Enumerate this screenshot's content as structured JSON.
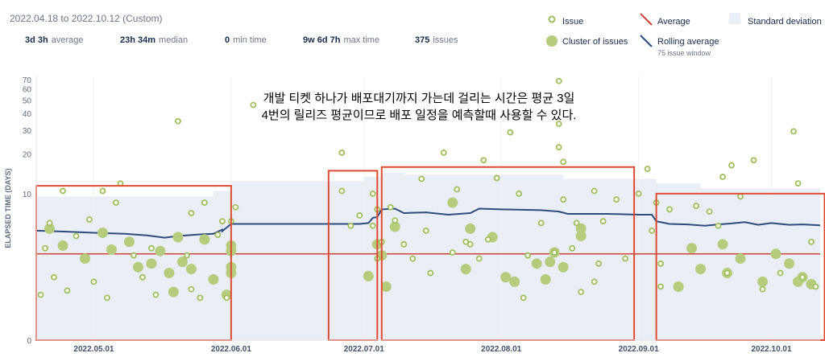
{
  "date_range": "2022.04.18 to 2022.10.12 (Custom)",
  "stats": [
    {
      "value": "3d 3h",
      "label": "average"
    },
    {
      "value": "23h 34m",
      "label": "median"
    },
    {
      "value": "0",
      "label": "min time"
    },
    {
      "value": "9w 6d 7h",
      "label": "max time"
    },
    {
      "value": "375",
      "label": "issues"
    }
  ],
  "legend": {
    "issue": "Issue",
    "cluster": "Cluster of issues",
    "average": "Average",
    "rolling": "Rolling average",
    "rolling_window": "75 issue window",
    "stddev": "Standard deviation"
  },
  "annotation": {
    "line1": "개발 티켓 하나가 배포대기까지 가는데 걸리는 시간은 평균 3일",
    "line2": "4번의 릴리즈 평균이므로 배포 일정을 예측할때 사용할 수 있다."
  },
  "colors": {
    "issue": "#9fbf5a",
    "cluster": "#b5cc7d",
    "average": "#d04437",
    "rolling": "#2e4c7f",
    "stddev": "#e9eef7",
    "highlight": "#e04a32"
  },
  "chart_data": {
    "type": "scatter",
    "scale": "log",
    "ylabel": "ELAPSED TIME (DAYS)",
    "yticks": [
      0,
      10,
      20,
      30,
      40,
      50,
      60,
      70
    ],
    "xticks": [
      "2022.05.01",
      "2022.06.01",
      "2022.07.01",
      "2022.08.01",
      "2022.09.01",
      "2022.10.01"
    ],
    "x_start": "2022-04-18",
    "x_end": "2022-10-12",
    "average_days": 3.1,
    "issues": [
      {
        "x": "2022-04-19",
        "y": 1.1
      },
      {
        "x": "2022-04-20",
        "y": 3.5
      },
      {
        "x": "2022-04-21",
        "y": 5.8
      },
      {
        "x": "2022-04-22",
        "y": 1.8
      },
      {
        "x": "2022-04-24",
        "y": 10.5
      },
      {
        "x": "2022-04-25",
        "y": 1.25
      },
      {
        "x": "2022-04-27",
        "y": 4.5
      },
      {
        "x": "2022-04-30",
        "y": 6.2
      },
      {
        "x": "2022-05-01",
        "y": 1.6
      },
      {
        "x": "2022-05-03",
        "y": 10.5
      },
      {
        "x": "2022-05-04",
        "y": 1.0
      },
      {
        "x": "2022-05-06",
        "y": 8.5
      },
      {
        "x": "2022-05-07",
        "y": 12.0
      },
      {
        "x": "2022-05-10",
        "y": 3.0
      },
      {
        "x": "2022-05-12",
        "y": 1.8
      },
      {
        "x": "2022-05-14",
        "y": 3.5
      },
      {
        "x": "2022-05-15",
        "y": 1.1
      },
      {
        "x": "2022-05-20",
        "y": 35
      },
      {
        "x": "2022-05-22",
        "y": 3.0
      },
      {
        "x": "2022-05-23",
        "y": 7.0
      },
      {
        "x": "2022-05-23",
        "y": 1.3
      },
      {
        "x": "2022-05-25",
        "y": 1.0
      },
      {
        "x": "2022-05-26",
        "y": 8.5
      },
      {
        "x": "2022-05-29",
        "y": 4.6
      },
      {
        "x": "2022-05-30",
        "y": 6.0
      },
      {
        "x": "2022-05-31",
        "y": 1.0
      },
      {
        "x": "2022-06-01",
        "y": 6.0
      },
      {
        "x": "2022-06-02",
        "y": 7.8
      },
      {
        "x": "2022-06-06",
        "y": 46
      },
      {
        "x": "2022-06-26",
        "y": 20.5
      },
      {
        "x": "2022-06-26",
        "y": 10.5
      },
      {
        "x": "2022-06-28",
        "y": 5.5
      },
      {
        "x": "2022-06-30",
        "y": 6.7
      },
      {
        "x": "2022-07-03",
        "y": 10.0
      },
      {
        "x": "2022-07-03",
        "y": 5.5
      },
      {
        "x": "2022-07-04",
        "y": 7.5
      },
      {
        "x": "2022-07-04",
        "y": 2.8
      },
      {
        "x": "2022-07-05",
        "y": 4.0
      },
      {
        "x": "2022-07-07",
        "y": 7.8
      },
      {
        "x": "2022-07-08",
        "y": 6.1
      },
      {
        "x": "2022-07-10",
        "y": 3.8
      },
      {
        "x": "2022-07-12",
        "y": 2.8
      },
      {
        "x": "2022-07-14",
        "y": 13.0
      },
      {
        "x": "2022-07-15",
        "y": 5.0
      },
      {
        "x": "2022-07-16",
        "y": 2.0
      },
      {
        "x": "2022-07-19",
        "y": 20.5
      },
      {
        "x": "2022-07-21",
        "y": 3.2
      },
      {
        "x": "2022-07-22",
        "y": 10.8
      },
      {
        "x": "2022-07-24",
        "y": 4.0
      },
      {
        "x": "2022-07-25",
        "y": 3.8
      },
      {
        "x": "2022-07-27",
        "y": 2.8
      },
      {
        "x": "2022-07-28",
        "y": 18.0
      },
      {
        "x": "2022-07-29",
        "y": 4.2
      },
      {
        "x": "2022-07-31",
        "y": 13.2
      },
      {
        "x": "2022-08-03",
        "y": 29.0
      },
      {
        "x": "2022-08-05",
        "y": 10.0
      },
      {
        "x": "2022-08-06",
        "y": 1.0
      },
      {
        "x": "2022-08-07",
        "y": 3.0
      },
      {
        "x": "2022-08-10",
        "y": 5.8
      },
      {
        "x": "2022-08-13",
        "y": 3.2
      },
      {
        "x": "2022-08-14",
        "y": 68.5
      },
      {
        "x": "2022-08-14",
        "y": 33.5
      },
      {
        "x": "2022-08-14",
        "y": 22.5
      },
      {
        "x": "2022-08-15",
        "y": 17.5
      },
      {
        "x": "2022-08-15",
        "y": 9.0
      },
      {
        "x": "2022-08-17",
        "y": 3.5
      },
      {
        "x": "2022-08-18",
        "y": 5.8
      },
      {
        "x": "2022-08-19",
        "y": 1.2
      },
      {
        "x": "2022-08-22",
        "y": 10.5
      },
      {
        "x": "2022-08-23",
        "y": 2.5
      },
      {
        "x": "2022-08-22",
        "y": 1.6
      },
      {
        "x": "2022-08-24",
        "y": 6.0
      },
      {
        "x": "2022-08-27",
        "y": 9.0
      },
      {
        "x": "2022-08-29",
        "y": 2.8
      },
      {
        "x": "2022-09-01",
        "y": 10.0
      },
      {
        "x": "2022-09-03",
        "y": 15.5
      },
      {
        "x": "2022-09-05",
        "y": 8.5
      },
      {
        "x": "2022-09-04",
        "y": 5.0
      },
      {
        "x": "2022-09-06",
        "y": 2.5
      },
      {
        "x": "2022-09-06",
        "y": 1.4
      },
      {
        "x": "2022-09-08",
        "y": 7.5
      },
      {
        "x": "2022-09-14",
        "y": 8.0
      },
      {
        "x": "2022-09-17",
        "y": 7.2
      },
      {
        "x": "2022-09-19",
        "y": 5.5
      },
      {
        "x": "2022-09-20",
        "y": 13.5
      },
      {
        "x": "2022-09-21",
        "y": 2.0
      },
      {
        "x": "2022-09-22",
        "y": 16.5
      },
      {
        "x": "2022-09-24",
        "y": 9.5
      },
      {
        "x": "2022-09-27",
        "y": 18.0
      },
      {
        "x": "2022-09-29",
        "y": 1.3
      },
      {
        "x": "2022-10-03",
        "y": 2.0
      },
      {
        "x": "2022-10-06",
        "y": 29.5
      },
      {
        "x": "2022-10-07",
        "y": 12.0
      },
      {
        "x": "2022-10-08",
        "y": 1.8
      },
      {
        "x": "2022-10-10",
        "y": 4.0
      },
      {
        "x": "2022-10-11",
        "y": 1.4
      }
    ],
    "clusters": [
      {
        "x": "2022-04-21",
        "y": 5.2
      },
      {
        "x": "2022-04-24",
        "y": 3.7
      },
      {
        "x": "2022-04-29",
        "y": 2.8
      },
      {
        "x": "2022-05-03",
        "y": 4.8
      },
      {
        "x": "2022-05-05",
        "y": 3.4
      },
      {
        "x": "2022-05-09",
        "y": 4.0
      },
      {
        "x": "2022-05-11",
        "y": 2.3
      },
      {
        "x": "2022-05-14",
        "y": 2.5
      },
      {
        "x": "2022-05-16",
        "y": 3.3
      },
      {
        "x": "2022-05-18",
        "y": 2.0
      },
      {
        "x": "2022-05-19",
        "y": 1.2
      },
      {
        "x": "2022-05-20",
        "y": 4.4
      },
      {
        "x": "2022-05-21",
        "y": 2.6
      },
      {
        "x": "2022-05-23",
        "y": 2.2
      },
      {
        "x": "2022-05-26",
        "y": 4.2
      },
      {
        "x": "2022-05-28",
        "y": 1.7
      },
      {
        "x": "2022-05-31",
        "y": 1.1
      },
      {
        "x": "2022-06-01",
        "y": 3.7
      },
      {
        "x": "2022-06-01",
        "y": 3.3
      },
      {
        "x": "2022-06-01",
        "y": 2.3
      },
      {
        "x": "2022-06-01",
        "y": 2.0
      },
      {
        "x": "2022-07-02",
        "y": 1.85
      },
      {
        "x": "2022-07-04",
        "y": 3.8
      },
      {
        "x": "2022-07-05",
        "y": 3.0
      },
      {
        "x": "2022-07-06",
        "y": 1.4
      },
      {
        "x": "2022-07-08",
        "y": 5.4
      },
      {
        "x": "2022-07-21",
        "y": 8.5
      },
      {
        "x": "2022-07-24",
        "y": 2.2
      },
      {
        "x": "2022-07-25",
        "y": 5.2
      },
      {
        "x": "2022-07-30",
        "y": 4.4
      },
      {
        "x": "2022-08-02",
        "y": 1.8
      },
      {
        "x": "2022-08-04",
        "y": 1.6
      },
      {
        "x": "2022-08-09",
        "y": 2.5
      },
      {
        "x": "2022-08-11",
        "y": 1.7
      },
      {
        "x": "2022-08-12",
        "y": 2.6
      },
      {
        "x": "2022-08-13",
        "y": 3.2
      },
      {
        "x": "2022-08-15",
        "y": 2.3
      },
      {
        "x": "2022-08-19",
        "y": 5.2
      },
      {
        "x": "2022-08-19",
        "y": 4.5
      },
      {
        "x": "2022-09-10",
        "y": 1.4
      },
      {
        "x": "2022-09-13",
        "y": 3.5
      },
      {
        "x": "2022-09-15",
        "y": 2.2
      },
      {
        "x": "2022-09-20",
        "y": 3.8
      },
      {
        "x": "2022-09-21",
        "y": 2.0
      },
      {
        "x": "2022-09-24",
        "y": 2.8
      },
      {
        "x": "2022-09-29",
        "y": 1.6
      },
      {
        "x": "2022-10-02",
        "y": 3.1
      },
      {
        "x": "2022-10-05",
        "y": 2.5
      },
      {
        "x": "2022-10-07",
        "y": 1.6
      },
      {
        "x": "2022-10-08",
        "y": 1.8
      },
      {
        "x": "2022-10-10",
        "y": 1.5
      }
    ],
    "rolling_average": [
      {
        "x": "2022-04-18",
        "y": 5.0
      },
      {
        "x": "2022-04-25",
        "y": 4.9
      },
      {
        "x": "2022-05-01",
        "y": 4.8
      },
      {
        "x": "2022-05-08",
        "y": 4.7
      },
      {
        "x": "2022-05-13",
        "y": 4.55
      },
      {
        "x": "2022-05-17",
        "y": 4.35
      },
      {
        "x": "2022-05-20",
        "y": 4.5
      },
      {
        "x": "2022-05-25",
        "y": 4.65
      },
      {
        "x": "2022-05-28",
        "y": 4.7
      },
      {
        "x": "2022-05-30",
        "y": 5.1
      },
      {
        "x": "2022-05-30",
        "y": 4.95
      },
      {
        "x": "2022-06-01",
        "y": 5.7
      },
      {
        "x": "2022-06-10",
        "y": 5.7
      },
      {
        "x": "2022-06-20",
        "y": 5.7
      },
      {
        "x": "2022-06-30",
        "y": 5.7
      },
      {
        "x": "2022-07-02",
        "y": 5.8
      },
      {
        "x": "2022-07-03",
        "y": 6.4
      },
      {
        "x": "2022-07-04",
        "y": 6.5
      },
      {
        "x": "2022-07-05",
        "y": 7.5
      },
      {
        "x": "2022-07-08",
        "y": 7.6
      },
      {
        "x": "2022-07-10",
        "y": 7.0
      },
      {
        "x": "2022-07-15",
        "y": 7.1
      },
      {
        "x": "2022-07-20",
        "y": 6.8
      },
      {
        "x": "2022-07-25",
        "y": 7.0
      },
      {
        "x": "2022-07-27",
        "y": 7.6
      },
      {
        "x": "2022-08-01",
        "y": 7.5
      },
      {
        "x": "2022-08-10",
        "y": 7.4
      },
      {
        "x": "2022-08-14",
        "y": 7.2
      },
      {
        "x": "2022-08-16",
        "y": 6.9
      },
      {
        "x": "2022-08-20",
        "y": 6.9
      },
      {
        "x": "2022-08-25",
        "y": 6.9
      },
      {
        "x": "2022-09-01",
        "y": 6.8
      },
      {
        "x": "2022-09-04",
        "y": 6.8
      },
      {
        "x": "2022-09-05",
        "y": 6.0
      },
      {
        "x": "2022-09-08",
        "y": 5.7
      },
      {
        "x": "2022-09-12",
        "y": 5.65
      },
      {
        "x": "2022-09-16",
        "y": 5.5
      },
      {
        "x": "2022-09-18",
        "y": 5.6
      },
      {
        "x": "2022-09-22",
        "y": 5.75
      },
      {
        "x": "2022-09-25",
        "y": 5.9
      },
      {
        "x": "2022-09-28",
        "y": 5.6
      },
      {
        "x": "2022-10-01",
        "y": 5.8
      },
      {
        "x": "2022-10-05",
        "y": 5.6
      },
      {
        "x": "2022-10-08",
        "y": 5.65
      },
      {
        "x": "2022-10-12",
        "y": 5.55
      }
    ],
    "stddev_upper": [
      {
        "x": "2022-04-18",
        "y": 9.5
      },
      {
        "x": "2022-05-15",
        "y": 9.5
      },
      {
        "x": "2022-05-28",
        "y": 10.5
      },
      {
        "x": "2022-06-01",
        "y": 12.5
      },
      {
        "x": "2022-06-30",
        "y": 12.5
      },
      {
        "x": "2022-07-01",
        "y": 13.5
      },
      {
        "x": "2022-07-05",
        "y": 14.5
      },
      {
        "x": "2022-07-10",
        "y": 14.0
      },
      {
        "x": "2022-08-14",
        "y": 14.0
      },
      {
        "x": "2022-08-15",
        "y": 13.0
      },
      {
        "x": "2022-09-05",
        "y": 12.0
      },
      {
        "x": "2022-09-15",
        "y": 11.0
      },
      {
        "x": "2022-10-12",
        "y": 10.5
      }
    ],
    "highlight_boxes": [
      {
        "from": "2022-04-18",
        "to": "2022-06-01",
        "ymin": 0,
        "ymax": 11.5
      },
      {
        "from": "2022-06-23",
        "to": "2022-07-04",
        "ymin": 0,
        "ymax": 15.0
      },
      {
        "from": "2022-07-05",
        "to": "2022-08-31",
        "ymin": 0,
        "ymax": 16.0
      },
      {
        "from": "2022-09-05",
        "to": "2022-10-13",
        "ymin": 0,
        "ymax": 10.0
      }
    ]
  }
}
